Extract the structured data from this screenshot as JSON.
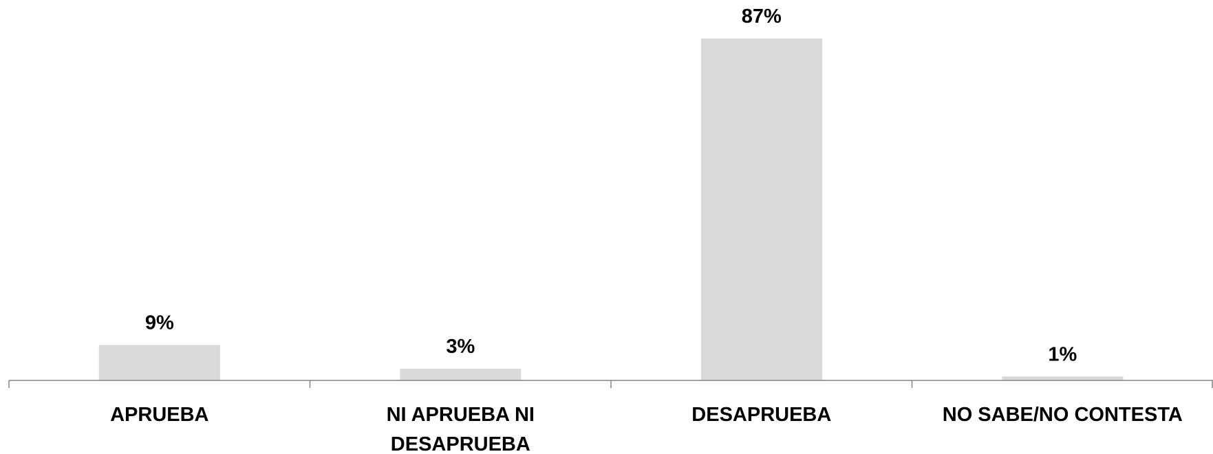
{
  "chart_data": {
    "type": "bar",
    "categories": [
      [
        "APRUEBA"
      ],
      [
        "NI APRUEBA NI",
        "DESAPRUEBA"
      ],
      [
        "DESAPRUEBA"
      ],
      [
        "NO SABE/NO CONTESTA"
      ]
    ],
    "values": [
      9,
      3,
      87,
      1
    ],
    "data_labels": [
      "9%",
      "3%",
      "87%",
      "1%"
    ],
    "unit": "%",
    "ylim": [
      0,
      87
    ],
    "grid": false,
    "legend": "none",
    "colors": {
      "bar": "#d9d9d9",
      "axis": "#868686",
      "text": "#000000"
    }
  }
}
